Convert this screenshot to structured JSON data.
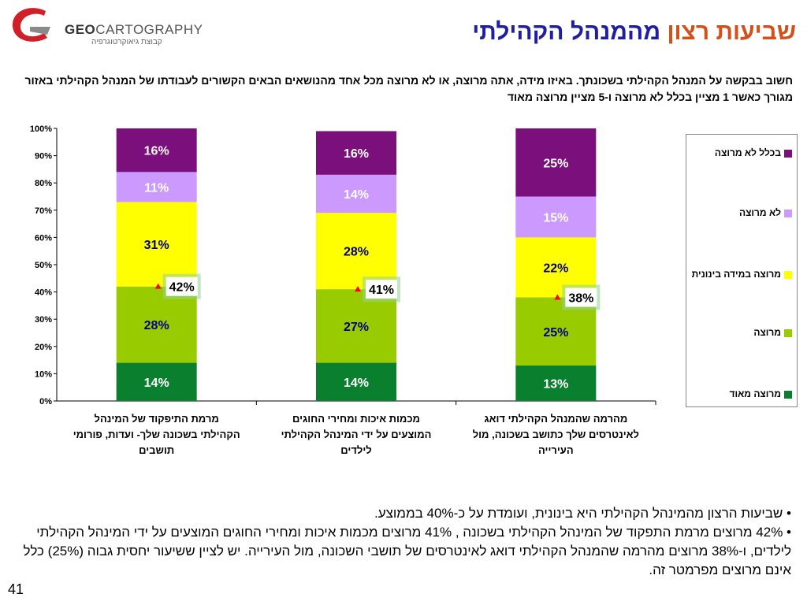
{
  "logo": {
    "brand_bold": "GEO",
    "brand_rest": "CARTOGRAPHY",
    "subtitle": "קבוצת גיאוקרטוגרפיה"
  },
  "title": {
    "part1": "שביעות רצון",
    "part2": "מהמנהל הקהילתי"
  },
  "question": "חשוב בבקשה על המנהל הקהילתי בשכונתך. באיזו מידה, אתה מרוצה, או לא מרוצה מכל אחד מהנושאים הבאים הקשורים לעבודתו של המנהל הקהילתי באזור מגורך כאשר 1 מציין בכלל לא מרוצה ו-5 מציין מרוצה מאוד",
  "legend": [
    {
      "label": "בכלל לא מרוצה",
      "color": "#7b0f7b"
    },
    {
      "label": "לא מרוצה",
      "color": "#cc99ff"
    },
    {
      "label": "מרוצה במידה בינונית",
      "color": "#ffff00"
    },
    {
      "label": "מרוצה",
      "color": "#99cc00"
    },
    {
      "label": "מרוצה מאוד",
      "color": "#0a7f2e"
    }
  ],
  "chart_data": {
    "type": "bar",
    "stacked": true,
    "categories": [
      [
        "מרמת התיפקוד של המינהל",
        "הקהילתי בשכונה שלך- ועדות, פורומי",
        "תושבים"
      ],
      [
        "מכמות איכות ומחירי החוגים",
        "המוצעים על ידי המינהל הקהילתי",
        "לילדים"
      ],
      [
        "מהרמה שהמנהל הקהילתי דואג",
        "לאינטרסים שלך כתושב בשכונה, מול",
        "העירייה"
      ]
    ],
    "series": [
      {
        "name": "מרוצה מאוד",
        "color": "#0a7f2e",
        "text_color": "#ffffff",
        "values": [
          14,
          14,
          13
        ],
        "labels": [
          "14%",
          "14%",
          "13%"
        ]
      },
      {
        "name": "מרוצה",
        "color": "#99cc00",
        "text_color": "#000080",
        "values": [
          28,
          27,
          25
        ],
        "labels": [
          "28%",
          "27%",
          "25%"
        ]
      },
      {
        "name": "מרוצה במידה בינונית",
        "color": "#ffff00",
        "text_color": "#000080",
        "values": [
          31,
          28,
          22
        ],
        "labels": [
          "31%",
          "28%",
          "22%"
        ]
      },
      {
        "name": "לא מרוצה",
        "color": "#cc99ff",
        "text_color": "#ffffff",
        "values": [
          11,
          14,
          15
        ],
        "labels": [
          "11%",
          "14%",
          "15%"
        ]
      },
      {
        "name": "בכלל לא מרוצה",
        "color": "#7b0f7b",
        "text_color": "#ffffff",
        "values": [
          16,
          16,
          25
        ],
        "labels": [
          "16%",
          "16%",
          "25%"
        ]
      }
    ],
    "averages": [
      {
        "value": 42,
        "label": "42%"
      },
      {
        "value": 41,
        "label": "41%"
      },
      {
        "value": 38,
        "label": "38%"
      }
    ],
    "ylim": [
      0,
      100
    ],
    "yticks": [
      "0%",
      "10%",
      "20%",
      "30%",
      "40%",
      "50%",
      "60%",
      "70%",
      "80%",
      "90%",
      "100%"
    ],
    "legend_position": "right"
  },
  "bullets": [
    "• שביעות הרצון מהמינהל הקהילתי היא בינונית, ועומדת על כ-40% בממוצע.",
    "• 42% מרוצים מרמת התפקוד של המינהל הקהילתי בשכונה , 41% מרוצים מכמות איכות ומחירי החוגים המוצעים על ידי המינהל הקהילתי לילדים, ו-38% מרוצים מהרמה שהמנהל הקהילתי דואג לאינטרסים של תושבי השכונה, מול העירייה. יש לציין ששיעור יחסית גבוה (25%) כלל אינם מרוצים מפרמטר זה."
  ],
  "page_number": "41"
}
